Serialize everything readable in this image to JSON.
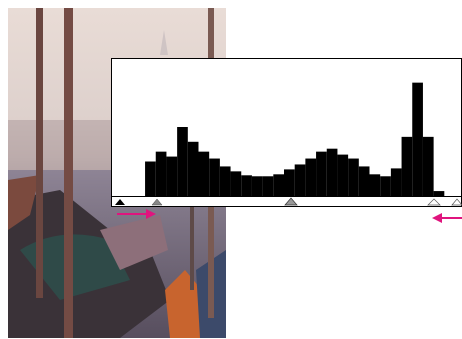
{
  "chart_data": {
    "type": "histogram",
    "bins": [
      0,
      8,
      16,
      24,
      32,
      40,
      48,
      56,
      64,
      72,
      80,
      88,
      96,
      104,
      112,
      120,
      128,
      136,
      144,
      152,
      160,
      168,
      176,
      184,
      192,
      200,
      208,
      216,
      224,
      232,
      240,
      248,
      256
    ],
    "values": [
      0,
      0,
      0,
      35,
      45,
      40,
      70,
      55,
      45,
      38,
      30,
      25,
      21,
      20,
      20,
      22,
      27,
      32,
      38,
      45,
      48,
      42,
      38,
      30,
      22,
      20,
      28,
      60,
      115,
      60,
      5,
      0
    ],
    "color": "#000000",
    "ylim": [
      0,
      140
    ]
  }
}
